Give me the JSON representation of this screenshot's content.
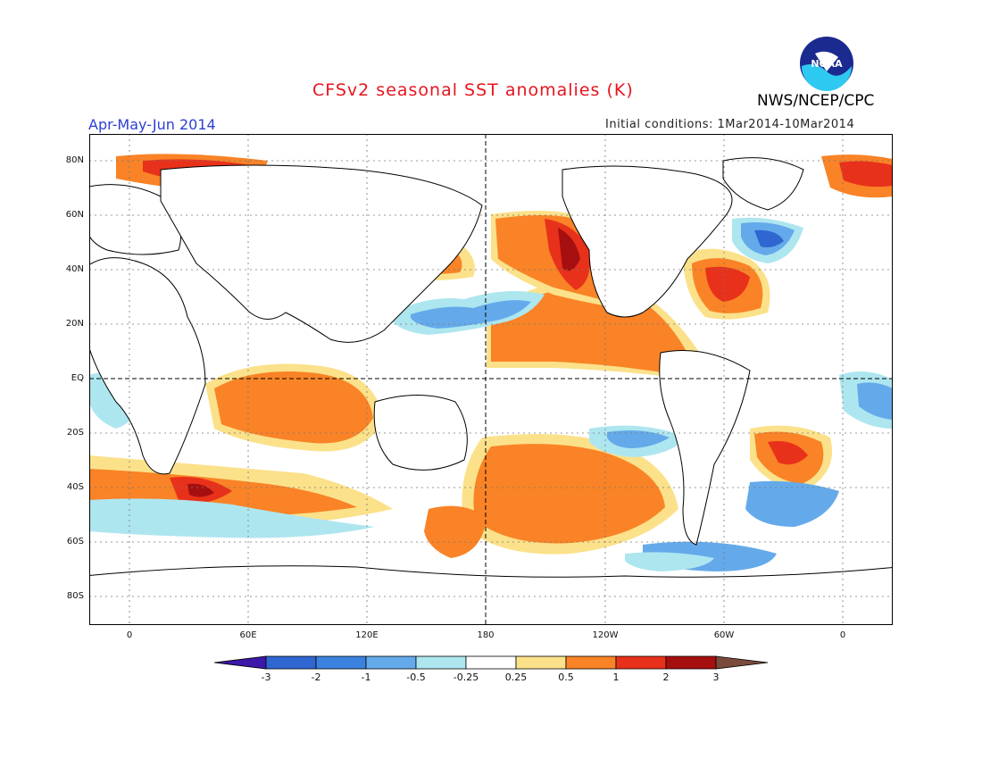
{
  "header": {
    "title": "CFSv2 seasonal SST anomalies (K)",
    "organization": "NWS/NCEP/CPC",
    "logo_text": "NOAA",
    "period": "Apr-May-Jun 2014",
    "initial_conditions": "Initial conditions: 1Mar2014-10Mar2014"
  },
  "axes": {
    "lat_labels": [
      "80N",
      "60N",
      "40N",
      "20N",
      "EQ",
      "20S",
      "40S",
      "60S",
      "80S"
    ],
    "lon_labels": [
      "0",
      "60E",
      "120E",
      "180",
      "120W",
      "60W",
      "0"
    ]
  },
  "colorbar": {
    "labels": [
      "-3",
      "-2",
      "-1",
      "-0.5",
      "-0.25",
      "0.25",
      "0.5",
      "1",
      "2",
      "3"
    ],
    "colors": [
      "#3c18a8",
      "#2f66cf",
      "#3b82e0",
      "#64aaea",
      "#aee6f0",
      "#ffffff",
      "#fbe18a",
      "#f98326",
      "#e8311a",
      "#a60f0f",
      "#7a4a3a"
    ]
  },
  "colors": {
    "title": "#e8141e",
    "period": "#2b3fd6",
    "land_fill": "#ffffff",
    "coast": "#000000"
  }
}
